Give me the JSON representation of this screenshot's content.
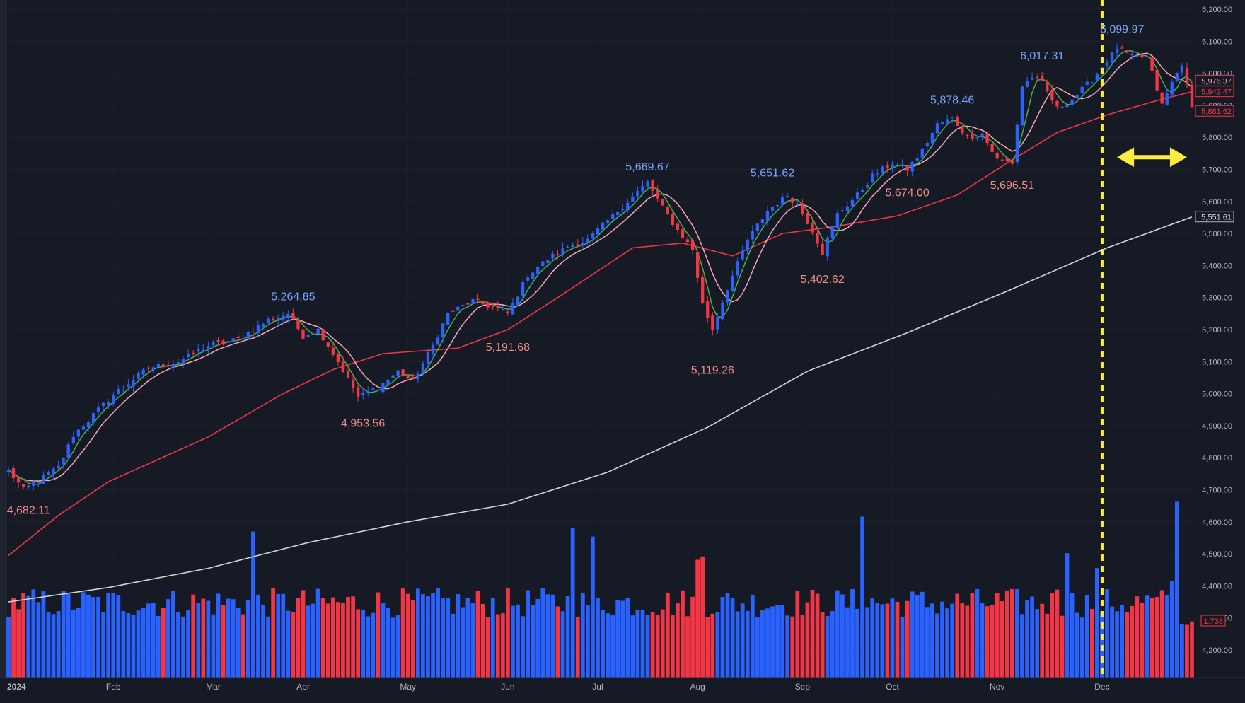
{
  "chart_data": {
    "type": "candlestick",
    "y_axis": {
      "ticks": [
        "6,200.00",
        "6,100.00",
        "6,000.00",
        "5,900.00",
        "5,800.00",
        "5,700.00",
        "5,600.00",
        "5,500.00",
        "5,400.00",
        "5,300.00",
        "5,200.00",
        "5,100.00",
        "5,000.00",
        "4,900.00",
        "4,800.00",
        "4,700.00",
        "4,600.00",
        "4,500.00",
        "4,400.00",
        "4,300.00",
        "4,200.00"
      ],
      "tick_values": [
        6200,
        6100,
        6000,
        5900,
        5800,
        5700,
        5600,
        5500,
        5400,
        5300,
        5200,
        5100,
        5000,
        4900,
        4800,
        4700,
        4600,
        4500,
        4400,
        4300,
        4200
      ],
      "range": [
        4150,
        6250
      ]
    },
    "x_axis": {
      "labels": [
        "2024",
        "Feb",
        "Mar",
        "Apr",
        "May",
        "Jun",
        "Jul",
        "Aug",
        "Sep",
        "Oct",
        "Nov",
        "Dec"
      ],
      "label_days": [
        0,
        21,
        41,
        59,
        80,
        100,
        118,
        138,
        159,
        177,
        198,
        219
      ]
    },
    "total_days": 237,
    "high_labels": [
      {
        "text": "5,264.85",
        "day": 57,
        "value": 5264.85
      },
      {
        "text": "5,669.67",
        "day": 128,
        "value": 5669.67
      },
      {
        "text": "5,651.62",
        "day": 153,
        "value": 5651.62
      },
      {
        "text": "5,878.46",
        "day": 189,
        "value": 5878.46
      },
      {
        "text": "6,017.31",
        "day": 207,
        "value": 6017.31
      },
      {
        "text": "6,099.97",
        "day": 223,
        "value": 6099.97
      }
    ],
    "low_labels": [
      {
        "text": "4,682.11",
        "day": 4,
        "value": 4682.11
      },
      {
        "text": "4,953.56",
        "day": 71,
        "value": 4953.56
      },
      {
        "text": "5,191.68",
        "day": 100,
        "value": 5191.68
      },
      {
        "text": "5,119.26",
        "day": 141,
        "value": 5119.26
      },
      {
        "text": "5,402.62",
        "day": 163,
        "value": 5402.62
      },
      {
        "text": "5,674.00",
        "day": 180,
        "value": 5674.0
      },
      {
        "text": "5,696.51",
        "day": 201,
        "value": 5696.51
      }
    ],
    "price_badges": [
      {
        "text": "5,976.37",
        "value": 5976.37,
        "color": "#f7a8b8",
        "border": "#d64a5a"
      },
      {
        "text": "5,942.47",
        "value": 5942.47,
        "color": "#f23645",
        "border": "#f23645"
      },
      {
        "text": "5,881.62",
        "value": 5881.62,
        "color": "#f23645",
        "border": "#f23645"
      },
      {
        "text": "5,551.61",
        "value": 5551.61,
        "color": "#d1d4dc",
        "border": "#b2b5be"
      }
    ],
    "volume_badge": {
      "text": "1.738",
      "color": "#f23645"
    },
    "ma200_points": [
      [
        0,
        4350
      ],
      [
        20,
        4395
      ],
      [
        40,
        4455
      ],
      [
        60,
        4535
      ],
      [
        80,
        4600
      ],
      [
        100,
        4655
      ],
      [
        120,
        4755
      ],
      [
        140,
        4895
      ],
      [
        160,
        5070
      ],
      [
        180,
        5190
      ],
      [
        200,
        5320
      ],
      [
        220,
        5455
      ],
      [
        237,
        5551.61
      ]
    ],
    "ma50_points": [
      [
        0,
        4495
      ],
      [
        10,
        4620
      ],
      [
        20,
        4725
      ],
      [
        40,
        4865
      ],
      [
        55,
        5000
      ],
      [
        65,
        5075
      ],
      [
        75,
        5125
      ],
      [
        90,
        5142
      ],
      [
        100,
        5200
      ],
      [
        110,
        5300
      ],
      [
        125,
        5455
      ],
      [
        135,
        5470
      ],
      [
        145,
        5430
      ],
      [
        155,
        5500
      ],
      [
        165,
        5520
      ],
      [
        178,
        5555
      ],
      [
        190,
        5620
      ],
      [
        200,
        5720
      ],
      [
        210,
        5815
      ],
      [
        220,
        5870
      ],
      [
        230,
        5915
      ],
      [
        237,
        5942.47
      ]
    ],
    "series_colors": {
      "up": "#2962ff",
      "down": "#f23645",
      "ma200": "#d1d4dc",
      "ma50": "#f23645",
      "ma21": "#f7a8b8",
      "ma10": "#4caf50",
      "marker": "#ffeb3b"
    },
    "marker_day": 219,
    "arrow_range_days": [
      222,
      236
    ],
    "arrow_value": 5738,
    "anchors": [
      [
        0,
        4760
      ],
      [
        3,
        4700
      ],
      [
        6,
        4730
      ],
      [
        10,
        4770
      ],
      [
        13,
        4870
      ],
      [
        18,
        4950
      ],
      [
        22,
        5010
      ],
      [
        28,
        5080
      ],
      [
        34,
        5100
      ],
      [
        40,
        5150
      ],
      [
        46,
        5170
      ],
      [
        52,
        5230
      ],
      [
        56,
        5250
      ],
      [
        59,
        5180
      ],
      [
        62,
        5200
      ],
      [
        66,
        5100
      ],
      [
        70,
        4990
      ],
      [
        74,
        5020
      ],
      [
        78,
        5070
      ],
      [
        81,
        5040
      ],
      [
        85,
        5150
      ],
      [
        88,
        5250
      ],
      [
        93,
        5290
      ],
      [
        97,
        5270
      ],
      [
        100,
        5250
      ],
      [
        104,
        5370
      ],
      [
        108,
        5420
      ],
      [
        112,
        5460
      ],
      [
        116,
        5480
      ],
      [
        120,
        5540
      ],
      [
        124,
        5600
      ],
      [
        128,
        5660
      ],
      [
        131,
        5580
      ],
      [
        134,
        5510
      ],
      [
        137,
        5450
      ],
      [
        139,
        5280
      ],
      [
        141,
        5200
      ],
      [
        144,
        5330
      ],
      [
        148,
        5480
      ],
      [
        152,
        5570
      ],
      [
        156,
        5620
      ],
      [
        158,
        5590
      ],
      [
        161,
        5510
      ],
      [
        163,
        5440
      ],
      [
        166,
        5560
      ],
      [
        170,
        5620
      ],
      [
        173,
        5680
      ],
      [
        177,
        5720
      ],
      [
        180,
        5700
      ],
      [
        183,
        5760
      ],
      [
        186,
        5840
      ],
      [
        189,
        5860
      ],
      [
        192,
        5800
      ],
      [
        195,
        5810
      ],
      [
        198,
        5730
      ],
      [
        201,
        5720
      ],
      [
        203,
        5960
      ],
      [
        205,
        5990
      ],
      [
        207,
        5970
      ],
      [
        210,
        5890
      ],
      [
        213,
        5920
      ],
      [
        217,
        5980
      ],
      [
        219,
        6020
      ],
      [
        222,
        6080
      ],
      [
        225,
        6050
      ],
      [
        228,
        6050
      ],
      [
        230,
        5950
      ],
      [
        231,
        5900
      ],
      [
        233,
        5970
      ],
      [
        235,
        6030
      ],
      [
        237,
        5890
      ]
    ],
    "volume": {
      "min": 4150,
      "max": 4700
    }
  }
}
